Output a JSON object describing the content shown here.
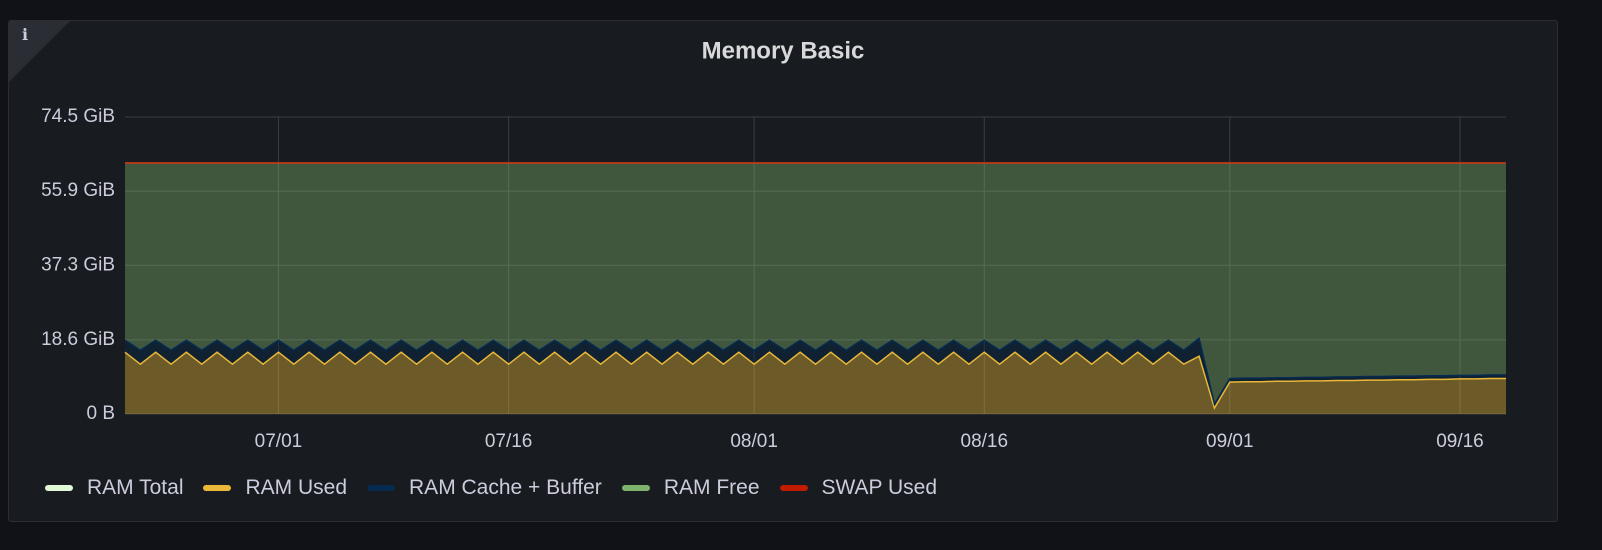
{
  "chart_data": {
    "type": "area",
    "title": "Memory Basic",
    "x": [
      "06/21",
      "06/22",
      "06/23",
      "06/24",
      "06/25",
      "06/26",
      "06/27",
      "06/28",
      "06/29",
      "06/30",
      "07/01",
      "07/02",
      "07/03",
      "07/04",
      "07/05",
      "07/06",
      "07/07",
      "07/08",
      "07/09",
      "07/10",
      "07/11",
      "07/12",
      "07/13",
      "07/14",
      "07/15",
      "07/16",
      "07/17",
      "07/18",
      "07/19",
      "07/20",
      "07/21",
      "07/22",
      "07/23",
      "07/24",
      "07/25",
      "07/26",
      "07/27",
      "07/28",
      "07/29",
      "07/30",
      "07/31",
      "08/01",
      "08/02",
      "08/03",
      "08/04",
      "08/05",
      "08/06",
      "08/07",
      "08/08",
      "08/09",
      "08/10",
      "08/11",
      "08/12",
      "08/13",
      "08/14",
      "08/15",
      "08/16",
      "08/17",
      "08/18",
      "08/19",
      "08/20",
      "08/21",
      "08/22",
      "08/23",
      "08/24",
      "08/25",
      "08/26",
      "08/27",
      "08/28",
      "08/29",
      "08/30",
      "08/31",
      "09/01",
      "09/02",
      "09/03",
      "09/04",
      "09/05",
      "09/06",
      "09/07",
      "09/08",
      "09/09",
      "09/10",
      "09/11",
      "09/12",
      "09/13",
      "09/14",
      "09/15",
      "09/16",
      "09/17",
      "09/18",
      "09/19"
    ],
    "xlim": [
      "06/21",
      "09/19"
    ],
    "xticks": [
      "07/01",
      "07/16",
      "08/01",
      "08/16",
      "09/01",
      "09/16"
    ],
    "ylim": [
      0,
      74.5
    ],
    "yticks": [
      {
        "value": 0,
        "label": "0 B"
      },
      {
        "value": 18.6,
        "label": "18.6 GiB"
      },
      {
        "value": 37.3,
        "label": "37.3 GiB"
      },
      {
        "value": 55.9,
        "label": "55.9 GiB"
      },
      {
        "value": 74.5,
        "label": "74.5 GiB"
      }
    ],
    "grid": true,
    "fill_opacity": 0.4,
    "series": [
      {
        "name": "RAM Total",
        "color": "#e0f9d7",
        "stack": false,
        "values": [
          63,
          63,
          63,
          63,
          63,
          63,
          63,
          63,
          63,
          63,
          63,
          63,
          63,
          63,
          63,
          63,
          63,
          63,
          63,
          63,
          63,
          63,
          63,
          63,
          63,
          63,
          63,
          63,
          63,
          63,
          63,
          63,
          63,
          63,
          63,
          63,
          63,
          63,
          63,
          63,
          63,
          63,
          63,
          63,
          63,
          63,
          63,
          63,
          63,
          63,
          63,
          63,
          63,
          63,
          63,
          63,
          63,
          63,
          63,
          63,
          63,
          63,
          63,
          63,
          63,
          63,
          63,
          63,
          63,
          63,
          63,
          63,
          63,
          63,
          63,
          63,
          63,
          63,
          63,
          63,
          63,
          63,
          63,
          63,
          63,
          63,
          63,
          63,
          63,
          63,
          63
        ]
      },
      {
        "name": "RAM Used",
        "color": "#eab839",
        "stack": true,
        "values": [
          15.5,
          12.5,
          15.5,
          12.5,
          15.5,
          12.5,
          15.5,
          12.5,
          15.5,
          12.5,
          15.5,
          12.5,
          15.5,
          12.5,
          15.5,
          12.5,
          15.5,
          12.5,
          15.5,
          12.5,
          15.5,
          12.5,
          15.5,
          12.5,
          15.5,
          12.5,
          15.5,
          12.5,
          15.5,
          12.5,
          15.5,
          12.5,
          15.5,
          12.5,
          15.5,
          12.5,
          15.5,
          12.5,
          15.5,
          12.5,
          15.5,
          12.5,
          15.5,
          12.5,
          15.5,
          12.5,
          15.5,
          12.5,
          15.5,
          12.5,
          15.5,
          12.5,
          15.5,
          12.5,
          15.5,
          12.5,
          15.5,
          12.5,
          15.5,
          12.5,
          15.5,
          12.5,
          15.5,
          12.5,
          15.5,
          12.5,
          15.5,
          12.5,
          15.5,
          12.5,
          14.5,
          1.5,
          8.0,
          8.1,
          8.1,
          8.2,
          8.2,
          8.3,
          8.3,
          8.4,
          8.4,
          8.5,
          8.5,
          8.6,
          8.6,
          8.7,
          8.7,
          8.8,
          8.8,
          8.9,
          8.9
        ]
      },
      {
        "name": "RAM Cache + Buffer",
        "color": "#052b51",
        "stack": true,
        "values": [
          3,
          3.5,
          3,
          3.5,
          3,
          3.5,
          3,
          3.5,
          3,
          3.5,
          3,
          3.5,
          3,
          3.5,
          3,
          3.5,
          3,
          3.5,
          3,
          3.5,
          3,
          3.5,
          3,
          3.5,
          3,
          3.5,
          3,
          3.5,
          3,
          3.5,
          3,
          3.5,
          3,
          3.5,
          3,
          3.5,
          3,
          3.5,
          3,
          3.5,
          3,
          3.5,
          3,
          3.5,
          3,
          3.5,
          3,
          3.5,
          3,
          3.5,
          3,
          3.5,
          3,
          3.5,
          3,
          3.5,
          3,
          3.5,
          3,
          3.5,
          3,
          3.5,
          3,
          3.5,
          3,
          3.5,
          3,
          3.5,
          3,
          3.5,
          4.5,
          1.0,
          0.9,
          0.9,
          0.9,
          0.9,
          0.9,
          0.9,
          0.9,
          0.9,
          0.9,
          0.9,
          0.9,
          0.9,
          0.9,
          0.9,
          0.9,
          0.9,
          0.9,
          0.9,
          0.9
        ]
      },
      {
        "name": "RAM Free",
        "color": "#7eb26d",
        "stack": true,
        "values": [
          44.5,
          47,
          44.5,
          47,
          44.5,
          47,
          44.5,
          47,
          44.5,
          47,
          44.5,
          47,
          44.5,
          47,
          44.5,
          47,
          44.5,
          47,
          44.5,
          47,
          44.5,
          47,
          44.5,
          47,
          44.5,
          47,
          44.5,
          47,
          44.5,
          47,
          44.5,
          47,
          44.5,
          47,
          44.5,
          47,
          44.5,
          47,
          44.5,
          47,
          44.5,
          47,
          44.5,
          47,
          44.5,
          47,
          44.5,
          47,
          44.5,
          47,
          44.5,
          47,
          44.5,
          47,
          44.5,
          47,
          44.5,
          47,
          44.5,
          47,
          44.5,
          47,
          44.5,
          47,
          44.5,
          47,
          44.5,
          47,
          44.5,
          47,
          44.0,
          60.5,
          54.1,
          54.0,
          54.0,
          53.9,
          53.9,
          53.8,
          53.8,
          53.7,
          53.7,
          53.6,
          53.6,
          53.5,
          53.5,
          53.4,
          53.4,
          53.3,
          53.3,
          53.2,
          53.2
        ]
      },
      {
        "name": "SWAP Used",
        "color": "#bf1b00",
        "stack": true,
        "values": [
          0,
          0,
          0,
          0,
          0,
          0,
          0,
          0,
          0,
          0,
          0,
          0,
          0,
          0,
          0,
          0,
          0,
          0,
          0,
          0,
          0,
          0,
          0,
          0,
          0,
          0,
          0,
          0,
          0,
          0,
          0,
          0,
          0,
          0,
          0,
          0,
          0,
          0,
          0,
          0,
          0,
          0,
          0,
          0,
          0,
          0,
          0,
          0,
          0,
          0,
          0,
          0,
          0,
          0,
          0,
          0,
          0,
          0,
          0,
          0,
          0,
          0,
          0,
          0,
          0,
          0,
          0,
          0,
          0,
          0,
          0,
          0,
          0,
          0,
          0,
          0,
          0,
          0,
          0,
          0,
          0,
          0,
          0,
          0,
          0,
          0,
          0,
          0,
          0,
          0,
          0
        ]
      }
    ]
  }
}
